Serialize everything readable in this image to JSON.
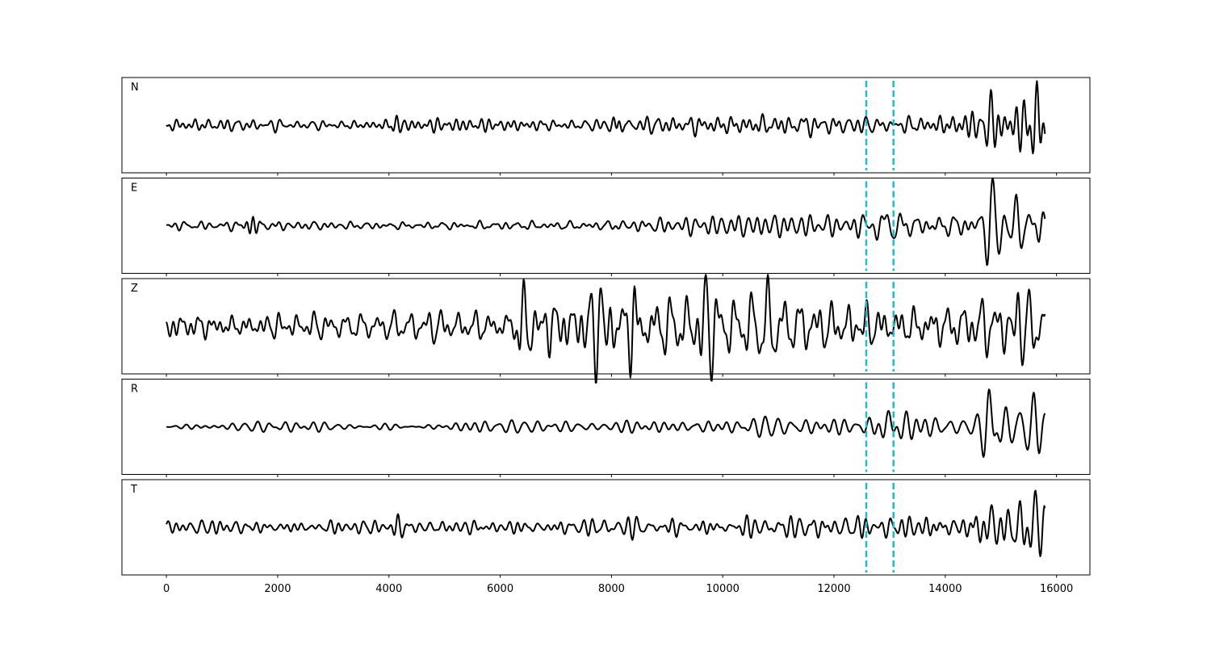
{
  "chart_data": {
    "type": "line",
    "title": "",
    "xlabel": "",
    "ylabel": "",
    "xlim": [
      -800,
      16600
    ],
    "x_ticks": [
      0,
      2000,
      4000,
      6000,
      8000,
      10000,
      12000,
      14000,
      16000
    ],
    "x_tick_labels": [
      "0",
      "2000",
      "4000",
      "6000",
      "8000",
      "10000",
      "12000",
      "14000",
      "16000"
    ],
    "x_range": [
      0,
      15800
    ],
    "shared_x": true,
    "grid": false,
    "legend": "none",
    "colors": {
      "trace": "#000000",
      "marker": "#17becf"
    },
    "vertical_markers": [
      {
        "x": 12580,
        "style": "dashed"
      },
      {
        "x": 13070,
        "style": "dashed"
      }
    ],
    "panels": [
      {
        "label": "N",
        "ylim": [
          -1.15,
          1.15
        ],
        "envelope": [
          [
            0,
            0.12
          ],
          [
            6000,
            0.15
          ],
          [
            8000,
            0.18
          ],
          [
            10000,
            0.18
          ],
          [
            12000,
            0.2
          ],
          [
            14000,
            0.28
          ],
          [
            15400,
            0.5
          ],
          [
            15800,
            0.55
          ]
        ],
        "events": [
          {
            "x": 4130,
            "amp": 0.2,
            "width": 120,
            "period": 120
          },
          {
            "x": 8130,
            "amp": 0.22,
            "width": 120,
            "period": 120
          },
          {
            "x": 11400,
            "amp": 0.2,
            "width": 200,
            "period": 250
          },
          {
            "x": 14800,
            "amp": 0.55,
            "width": 120,
            "period": 200
          },
          {
            "x": 15650,
            "amp": 1.0,
            "width": 110,
            "period": 170
          }
        ],
        "seed": 11
      },
      {
        "label": "E",
        "ylim": [
          -1.15,
          1.15
        ],
        "envelope": [
          [
            0,
            0.12
          ],
          [
            4000,
            0.1
          ],
          [
            8000,
            0.15
          ],
          [
            12000,
            0.2
          ],
          [
            13000,
            0.32
          ],
          [
            14200,
            0.35
          ],
          [
            15800,
            0.42
          ]
        ],
        "events": [
          {
            "x": 1550,
            "amp": 0.15,
            "width": 150,
            "period": 110
          },
          {
            "x": 12900,
            "amp": 0.35,
            "width": 220,
            "period": 280
          },
          {
            "x": 14850,
            "amp": 1.0,
            "width": 160,
            "period": 220
          },
          {
            "x": 15250,
            "amp": 0.55,
            "width": 170,
            "period": 240
          }
        ],
        "seed": 23
      },
      {
        "label": "Z",
        "ylim": [
          -1.15,
          1.15
        ],
        "envelope": [
          [
            0,
            0.4
          ],
          [
            2000,
            0.3
          ],
          [
            4000,
            0.3
          ],
          [
            6000,
            0.35
          ],
          [
            6500,
            0.65
          ],
          [
            8000,
            0.72
          ],
          [
            10000,
            0.62
          ],
          [
            11000,
            0.65
          ],
          [
            12000,
            0.52
          ],
          [
            13000,
            0.5
          ],
          [
            15800,
            0.6
          ]
        ],
        "events": [
          {
            "x": 6420,
            "amp": 0.8,
            "width": 120,
            "period": 180
          },
          {
            "x": 7800,
            "amp": 0.8,
            "width": 150,
            "period": 200
          },
          {
            "x": 8400,
            "amp": 0.9,
            "width": 120,
            "period": 170
          },
          {
            "x": 9700,
            "amp": 0.75,
            "width": 130,
            "period": 190
          },
          {
            "x": 10800,
            "amp": 0.75,
            "width": 160,
            "period": 200
          },
          {
            "x": 15300,
            "amp": 0.6,
            "width": 150,
            "period": 210
          }
        ],
        "seed": 37
      },
      {
        "label": "R",
        "ylim": [
          -1.15,
          1.15
        ],
        "envelope": [
          [
            0,
            0.1
          ],
          [
            4000,
            0.1
          ],
          [
            8000,
            0.15
          ],
          [
            10000,
            0.18
          ],
          [
            12000,
            0.22
          ],
          [
            13000,
            0.35
          ],
          [
            14200,
            0.3
          ],
          [
            15800,
            0.55
          ]
        ],
        "events": [
          {
            "x": 12960,
            "amp": 0.45,
            "width": 200,
            "period": 260
          },
          {
            "x": 14780,
            "amp": 1.0,
            "width": 140,
            "period": 220
          },
          {
            "x": 15600,
            "amp": 0.6,
            "width": 140,
            "period": 200
          }
        ],
        "seed": 51
      },
      {
        "label": "T",
        "ylim": [
          -1.15,
          1.15
        ],
        "envelope": [
          [
            0,
            0.15
          ],
          [
            6000,
            0.15
          ],
          [
            8000,
            0.2
          ],
          [
            10000,
            0.22
          ],
          [
            12000,
            0.25
          ],
          [
            14000,
            0.28
          ],
          [
            15400,
            0.5
          ],
          [
            15800,
            0.55
          ]
        ],
        "events": [
          {
            "x": 4150,
            "amp": 0.18,
            "width": 120,
            "period": 130
          },
          {
            "x": 14820,
            "amp": 0.6,
            "width": 130,
            "period": 200
          },
          {
            "x": 15600,
            "amp": 1.0,
            "width": 130,
            "period": 190
          }
        ],
        "seed": 67
      }
    ]
  }
}
